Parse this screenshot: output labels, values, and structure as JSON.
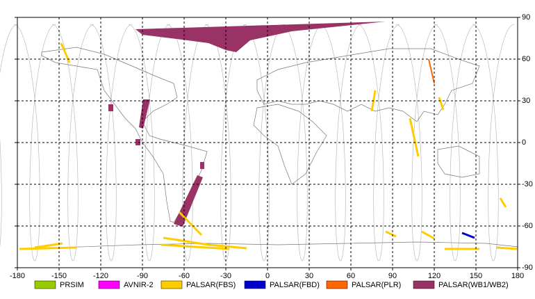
{
  "map": {
    "xticks": [
      -180,
      -150,
      -120,
      -90,
      -60,
      -30,
      0,
      30,
      60,
      90,
      120,
      150,
      180
    ],
    "yticks": [
      90,
      60,
      30,
      0,
      -30,
      -60,
      -90
    ],
    "xlim": [
      -180,
      180
    ],
    "ylim": [
      -90,
      90
    ],
    "legend": [
      {
        "name": "PRSIM",
        "color": "#99cc00"
      },
      {
        "name": "AVNIR-2",
        "color": "#ff00ff"
      },
      {
        "name": "PALSAR(FBS)",
        "color": "#ffcc00"
      },
      {
        "name": "PALSAR(FBD)",
        "color": "#0000cc"
      },
      {
        "name": "PALSAR(PLR)",
        "color": "#ff6600"
      },
      {
        "name": "PALSAR(WB1/WB2)",
        "color": "#993366"
      }
    ]
  }
}
